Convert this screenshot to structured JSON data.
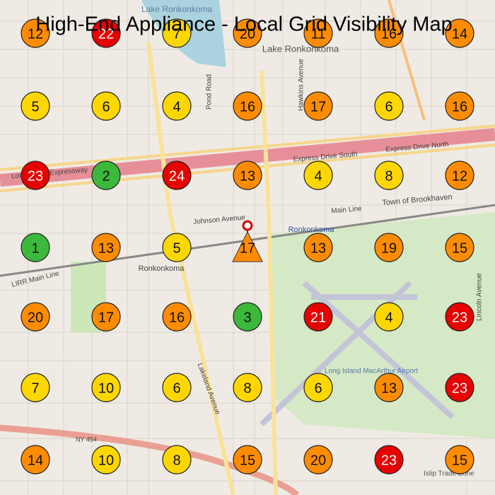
{
  "title": "High-End Appliance - Local Grid Visibility Map",
  "map_labels": [
    "Lake Ronkonkoma",
    "Lake Ronkonkoma",
    "Long Island Expressway",
    "Express Drive North",
    "Express Drive South",
    "Main Line",
    "Town of Brookhaven",
    "Ronkonkoma",
    "LIRR Main Line",
    "Ronkonkoma",
    "Long Island MacArthur Airport",
    "NY 454",
    "Pond Road",
    "Lakeland Avenue",
    "Hawkins Avenue",
    "Johnson Avenue",
    "Lincoln Avenue",
    "Islip Trade Zone"
  ],
  "grid": {
    "rows": [
      [
        {
          "value": 12,
          "color": "#ff8c00"
        },
        {
          "value": 22,
          "color": "#e60000"
        },
        {
          "value": 7,
          "color": "#ffd700"
        },
        {
          "value": 20,
          "color": "#ff8c00"
        },
        {
          "value": 11,
          "color": "#ff8c00"
        },
        {
          "value": 16,
          "color": "#ff8c00"
        },
        {
          "value": 14,
          "color": "#ff8c00"
        }
      ],
      [
        {
          "value": 5,
          "color": "#ffd700"
        },
        {
          "value": 6,
          "color": "#ffd700"
        },
        {
          "value": 4,
          "color": "#ffd700"
        },
        {
          "value": 16,
          "color": "#ff8c00"
        },
        {
          "value": 17,
          "color": "#ff8c00"
        },
        {
          "value": 6,
          "color": "#ffd700"
        },
        {
          "value": 16,
          "color": "#ff8c00"
        }
      ],
      [
        {
          "value": 23,
          "color": "#e60000"
        },
        {
          "value": 2,
          "color": "#3cb83c"
        },
        {
          "value": 24,
          "color": "#e60000"
        },
        {
          "value": 13,
          "color": "#ff8c00"
        },
        {
          "value": 4,
          "color": "#ffd700"
        },
        {
          "value": 8,
          "color": "#ffd700"
        },
        {
          "value": 12,
          "color": "#ff8c00"
        }
      ],
      [
        {
          "value": 1,
          "color": "#3cb83c"
        },
        {
          "value": 13,
          "color": "#ff8c00"
        },
        {
          "value": 5,
          "color": "#ffd700"
        },
        {
          "value": 17,
          "color": "#ff8c00",
          "marker": "triangle"
        },
        {
          "value": 13,
          "color": "#ff8c00"
        },
        {
          "value": 19,
          "color": "#ff8c00"
        },
        {
          "value": 15,
          "color": "#ff8c00"
        }
      ],
      [
        {
          "value": 20,
          "color": "#ff8c00"
        },
        {
          "value": 17,
          "color": "#ff8c00"
        },
        {
          "value": 16,
          "color": "#ff8c00"
        },
        {
          "value": 3,
          "color": "#3cb83c"
        },
        {
          "value": 21,
          "color": "#e60000"
        },
        {
          "value": 4,
          "color": "#ffd700"
        },
        {
          "value": 23,
          "color": "#e60000"
        }
      ],
      [
        {
          "value": 7,
          "color": "#ffd700"
        },
        {
          "value": 10,
          "color": "#ffd700"
        },
        {
          "value": 6,
          "color": "#ffd700"
        },
        {
          "value": 8,
          "color": "#ffd700"
        },
        {
          "value": 6,
          "color": "#ffd700"
        },
        {
          "value": 13,
          "color": "#ff8c00"
        },
        {
          "value": 23,
          "color": "#e60000"
        }
      ],
      [
        {
          "value": 14,
          "color": "#ff8c00"
        },
        {
          "value": 10,
          "color": "#ffd700"
        },
        {
          "value": 8,
          "color": "#ffd700"
        },
        {
          "value": 15,
          "color": "#ff8c00"
        },
        {
          "value": 20,
          "color": "#ff8c00"
        },
        {
          "value": 23,
          "color": "#e60000"
        },
        {
          "value": 15,
          "color": "#ff8c00"
        }
      ]
    ]
  }
}
